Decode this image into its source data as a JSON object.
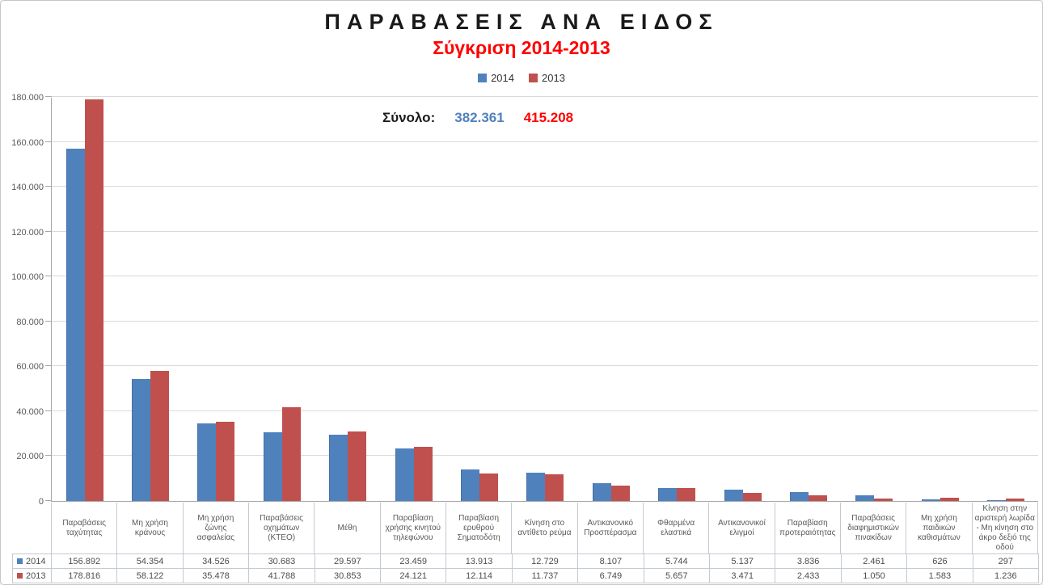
{
  "title": "ΠΑΡΑΒΑΣΕΙΣ ΑΝΑ ΕΙΔΟΣ",
  "subtitle": "Σύγκριση 2014-2013",
  "subtitle_color": "#ff0000",
  "legend": {
    "items": [
      {
        "label": "2014",
        "color": "#4f81bd"
      },
      {
        "label": "2013",
        "color": "#c0504d"
      }
    ]
  },
  "total": {
    "label": "Σύνολο:",
    "values": [
      {
        "text": "382.361",
        "color": "#4f81bd"
      },
      {
        "text": "415.208",
        "color": "#ff0000"
      }
    ]
  },
  "chart_data": {
    "type": "bar",
    "title": "ΠΑΡΑΒΑΣΕΙΣ ΑΝΑ ΕΙΔΟΣ — Σύγκριση 2014-2013",
    "categories": [
      "Παραβάσεις ταχύτητας",
      "Μη χρήση κράνους",
      "Μη χρήση ζώνης ασφαλείας",
      "Παραβάσεις οχημάτων (ΚΤΕΟ)",
      "Μέθη",
      "Παραβίαση χρήσης κινητού τηλεφώνου",
      "Παραβίαση ερυθρού Σηματοδότη",
      "Κίνηση στο αντίθετο ρεύμα",
      "Αντικανονικό Προσπέρασμα",
      "Φθαρμένα ελαστικά",
      "Αντικανονικοί ελιγμοί",
      "Παραβίαση προτεραιότητας",
      "Παραβάσεις διαφημιστικών πινακίδων",
      "Μη χρήση παιδικών καθισμάτων",
      "Κίνηση στην αριστερή λωρίδα - Μη κίνηση στο άκρο δεξιό της οδού"
    ],
    "series": [
      {
        "name": "2014",
        "color": "#4f81bd",
        "values": [
          156892,
          54354,
          34526,
          30683,
          29597,
          23459,
          13913,
          12729,
          8107,
          5744,
          5137,
          3836,
          2461,
          626,
          297
        ]
      },
      {
        "name": "2013",
        "color": "#c0504d",
        "values": [
          178816,
          58122,
          35478,
          41788,
          30853,
          24121,
          12114,
          11737,
          6749,
          5657,
          3471,
          2433,
          1050,
          1583,
          1236
        ]
      }
    ],
    "ylim": [
      0,
      180000
    ],
    "ytick_step": 20000,
    "ytick_labels": [
      "0",
      "20.000",
      "40.000",
      "60.000",
      "80.000",
      "100.000",
      "120.000",
      "140.000",
      "160.000",
      "180.000"
    ],
    "grid": true,
    "legend_position": "top"
  },
  "table": {
    "rows": [
      {
        "key": "2014",
        "color": "#4f81bd",
        "cells": [
          "156.892",
          "54.354",
          "34.526",
          "30.683",
          "29.597",
          "23.459",
          "13.913",
          "12.729",
          "8.107",
          "5.744",
          "5.137",
          "3.836",
          "2.461",
          "626",
          "297"
        ]
      },
      {
        "key": "2013",
        "color": "#c0504d",
        "cells": [
          "178.816",
          "58.122",
          "35.478",
          "41.788",
          "30.853",
          "24.121",
          "12.114",
          "11.737",
          "6.749",
          "5.657",
          "3.471",
          "2.433",
          "1.050",
          "1.583",
          "1.236"
        ]
      }
    ]
  }
}
